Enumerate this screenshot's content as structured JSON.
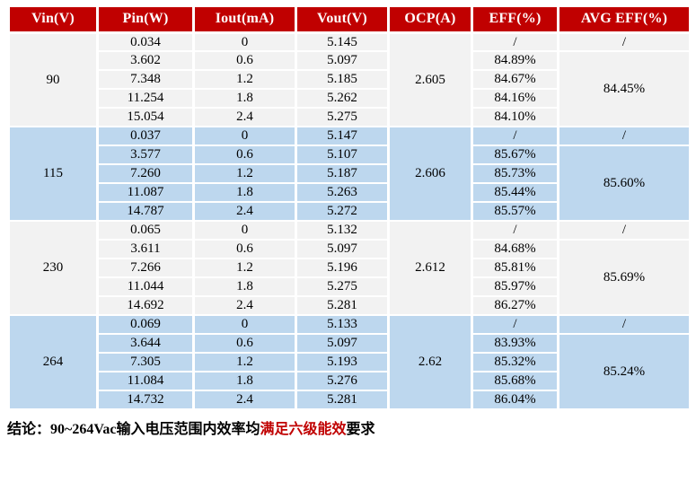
{
  "colors": {
    "header_bg": "#C00000",
    "header_text": "#FFFFFF",
    "group_light_bg": "#F2F2F2",
    "group_blue_bg": "#BDD7EE",
    "grid_line": "#FFFFFF",
    "body_text": "#000000",
    "conclusion_highlight": "#C00000"
  },
  "table": {
    "headers": [
      "Vin(V)",
      "Pin(W)",
      "Iout(mA)",
      "Vout(V)",
      "OCP(A)",
      "EFF(%)",
      "AVG EFF(%)"
    ],
    "groups": [
      {
        "vin": "90",
        "ocp": "2.605",
        "avg_eff_first": "/",
        "avg_eff": "84.45%",
        "rows": [
          {
            "pin": "0.034",
            "iout": "0",
            "vout": "5.145",
            "eff": "/"
          },
          {
            "pin": "3.602",
            "iout": "0.6",
            "vout": "5.097",
            "eff": "84.89%"
          },
          {
            "pin": "7.348",
            "iout": "1.2",
            "vout": "5.185",
            "eff": "84.67%"
          },
          {
            "pin": "11.254",
            "iout": "1.8",
            "vout": "5.262",
            "eff": "84.16%"
          },
          {
            "pin": "15.054",
            "iout": "2.4",
            "vout": "5.275",
            "eff": "84.10%"
          }
        ]
      },
      {
        "vin": "115",
        "ocp": "2.606",
        "avg_eff_first": "/",
        "avg_eff": "85.60%",
        "rows": [
          {
            "pin": "0.037",
            "iout": "0",
            "vout": "5.147",
            "eff": "/"
          },
          {
            "pin": "3.577",
            "iout": "0.6",
            "vout": "5.107",
            "eff": "85.67%"
          },
          {
            "pin": "7.260",
            "iout": "1.2",
            "vout": "5.187",
            "eff": "85.73%"
          },
          {
            "pin": "11.087",
            "iout": "1.8",
            "vout": "5.263",
            "eff": "85.44%"
          },
          {
            "pin": "14.787",
            "iout": "2.4",
            "vout": "5.272",
            "eff": "85.57%"
          }
        ]
      },
      {
        "vin": "230",
        "ocp": "2.612",
        "avg_eff_first": "/",
        "avg_eff": "85.69%",
        "rows": [
          {
            "pin": "0.065",
            "iout": "0",
            "vout": "5.132",
            "eff": "/"
          },
          {
            "pin": "3.611",
            "iout": "0.6",
            "vout": "5.097",
            "eff": "84.68%"
          },
          {
            "pin": "7.266",
            "iout": "1.2",
            "vout": "5.196",
            "eff": "85.81%"
          },
          {
            "pin": "11.044",
            "iout": "1.8",
            "vout": "5.275",
            "eff": "85.97%"
          },
          {
            "pin": "14.692",
            "iout": "2.4",
            "vout": "5.281",
            "eff": "86.27%"
          }
        ]
      },
      {
        "vin": "264",
        "ocp": "2.62",
        "avg_eff_first": "/",
        "avg_eff": "85.24%",
        "rows": [
          {
            "pin": "0.069",
            "iout": "0",
            "vout": "5.133",
            "eff": "/"
          },
          {
            "pin": "3.644",
            "iout": "0.6",
            "vout": "5.097",
            "eff": "83.93%"
          },
          {
            "pin": "7.305",
            "iout": "1.2",
            "vout": "5.193",
            "eff": "85.32%"
          },
          {
            "pin": "11.084",
            "iout": "1.8",
            "vout": "5.276",
            "eff": "85.68%"
          },
          {
            "pin": "14.732",
            "iout": "2.4",
            "vout": "5.281",
            "eff": "86.04%"
          }
        ]
      }
    ]
  },
  "conclusion": {
    "label": "结论：",
    "text_before": "90~264Vac输入电压范围内效率均",
    "highlight": "满足六级能效",
    "text_after": "要求"
  }
}
